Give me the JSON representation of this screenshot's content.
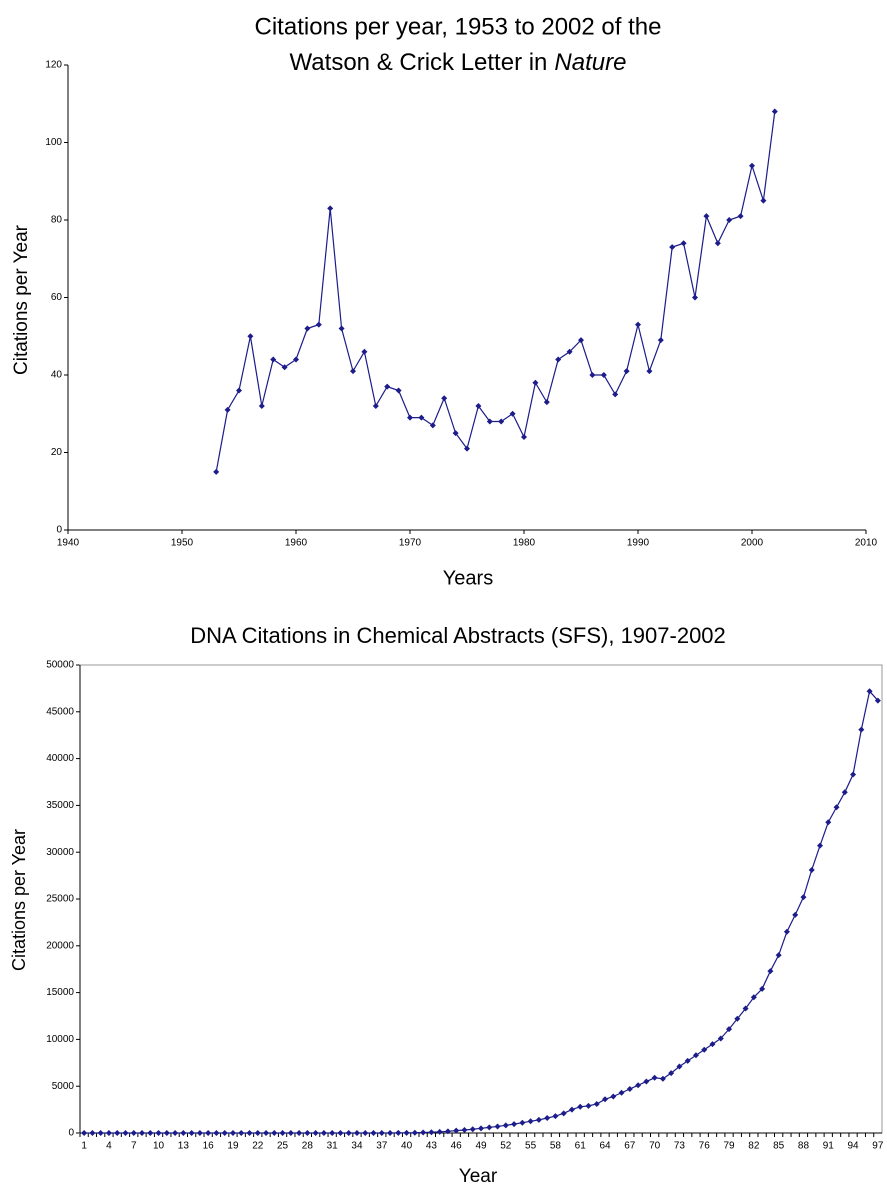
{
  "chart_data": [
    {
      "type": "line",
      "title": [
        "Citations per year, 1953 to 2002 of the",
        "Watson & Crick Letter in",
        "Nature"
      ],
      "x_label": "Years",
      "y_label": "Citations per Year",
      "x": [
        1953,
        1954,
        1955,
        1956,
        1957,
        1958,
        1959,
        1960,
        1961,
        1962,
        1963,
        1964,
        1965,
        1966,
        1967,
        1968,
        1969,
        1970,
        1971,
        1972,
        1973,
        1974,
        1975,
        1976,
        1977,
        1978,
        1979,
        1980,
        1981,
        1982,
        1983,
        1984,
        1985,
        1986,
        1987,
        1988,
        1989,
        1990,
        1991,
        1992,
        1993,
        1994,
        1995,
        1996,
        1997,
        1998,
        1999,
        2000,
        2001,
        2002
      ],
      "values": [
        15,
        31,
        36,
        50,
        32,
        44,
        42,
        44,
        52,
        53,
        83,
        52,
        41,
        46,
        32,
        37,
        36,
        29,
        29,
        27,
        34,
        25,
        21,
        32,
        28,
        28,
        30,
        24,
        38,
        33,
        44,
        46,
        49,
        40,
        40,
        35,
        41,
        53,
        41,
        49,
        73,
        74,
        60,
        81,
        74,
        80,
        81,
        94,
        85,
        108
      ],
      "color": "#1c1c8a",
      "xlim": [
        1940,
        2010
      ],
      "xticks": [
        1940,
        1950,
        1960,
        1970,
        1980,
        1990,
        2000,
        2010
      ],
      "ylim": [
        0,
        120
      ],
      "yticks": [
        0,
        20,
        40,
        60,
        80,
        100,
        120
      ],
      "frame": false
    },
    {
      "type": "line",
      "title": "DNA Citations in Chemical Abstracts (SFS), 1907-2002",
      "x_label": "Year",
      "y_label": "Citations per Year",
      "categories": [
        1,
        null,
        null,
        4,
        null,
        null,
        7,
        null,
        null,
        10,
        null,
        null,
        13,
        null,
        null,
        16,
        null,
        null,
        19,
        null,
        null,
        22,
        null,
        null,
        25,
        null,
        null,
        28,
        null,
        null,
        31,
        null,
        null,
        34,
        null,
        null,
        37,
        null,
        null,
        40,
        null,
        null,
        43,
        null,
        null,
        46,
        null,
        null,
        49,
        null,
        null,
        52,
        null,
        null,
        55,
        null,
        null,
        58,
        null,
        null,
        61,
        null,
        null,
        64,
        null,
        null,
        67,
        null,
        null,
        70,
        null,
        null,
        73,
        null,
        null,
        76,
        null,
        null,
        79,
        null,
        null,
        82,
        null,
        null,
        85,
        null,
        null,
        88,
        null,
        null,
        91,
        null,
        null,
        94,
        null,
        null,
        97
      ],
      "values": [
        0,
        0,
        0,
        0,
        0,
        0,
        0,
        0,
        0,
        0,
        0,
        0,
        0,
        0,
        0,
        0,
        0,
        0,
        0,
        0,
        0,
        0,
        0,
        0,
        0,
        0,
        0,
        0,
        0,
        0,
        0,
        0,
        0,
        0,
        0,
        0,
        0,
        0,
        10,
        20,
        30,
        50,
        80,
        120,
        180,
        250,
        320,
        400,
        500,
        600,
        700,
        820,
        950,
        1100,
        1250,
        1400,
        1600,
        1800,
        2100,
        2500,
        2800,
        2900,
        3100,
        3600,
        3900,
        4300,
        4700,
        5100,
        5500,
        5900,
        5800,
        6400,
        7100,
        7700,
        8300,
        8900,
        9500,
        10100,
        11100,
        12200,
        13300,
        14500,
        15400,
        17300,
        19000,
        21500,
        23300,
        25200,
        28100,
        30700,
        33200,
        34800,
        36400,
        38300,
        43100,
        47200,
        46200
      ],
      "color": "#1c1c8a",
      "ylim": [
        0,
        50000
      ],
      "yticks": [
        0,
        5000,
        10000,
        15000,
        20000,
        25000,
        30000,
        35000,
        40000,
        45000,
        50000
      ],
      "frame": true
    }
  ]
}
